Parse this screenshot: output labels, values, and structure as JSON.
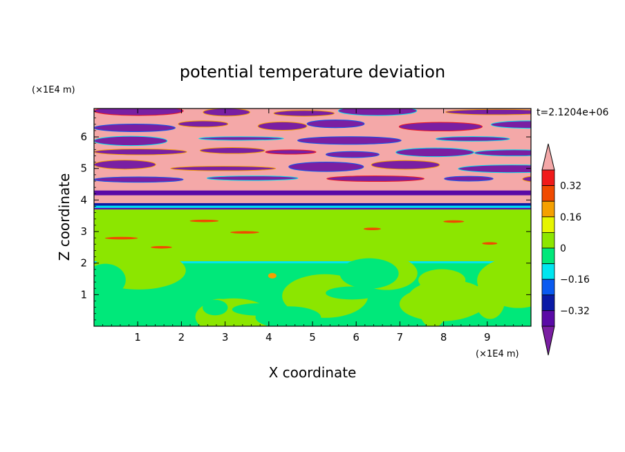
{
  "chart_data": {
    "type": "heatmap",
    "title": "potential temperature deviation",
    "xlabel": "X coordinate",
    "ylabel": "Z coordinate",
    "x_unit": "(×1E4 m)",
    "y_unit": "(×1E4 m)",
    "time_label": "t=2.1204e+06",
    "xlim": [
      0,
      10
    ],
    "ylim": [
      0,
      6.9
    ],
    "x_ticks": [
      1,
      2,
      3,
      4,
      5,
      6,
      7,
      8,
      9
    ],
    "y_ticks": [
      1,
      2,
      3,
      4,
      5,
      6
    ],
    "colorbar": {
      "levels": [
        -0.4,
        -0.32,
        -0.24,
        -0.16,
        -0.08,
        0,
        0.08,
        0.16,
        0.24,
        0.32,
        0.4
      ],
      "tick_labels": [
        "0.32",
        "0.16",
        "0",
        "−0.16",
        "−0.32"
      ],
      "tick_values": [
        0.32,
        0.16,
        0,
        -0.16,
        -0.32
      ],
      "under_color": "#7a1fa2",
      "over_color": "#f4a8a8",
      "colors": [
        "#5a0aa6",
        "#0a1aa6",
        "#0a5af0",
        "#00e6f0",
        "#00e87a",
        "#8ce600",
        "#e6f500",
        "#f5a000",
        "#f04a00",
        "#f01a1a"
      ]
    },
    "regions": [
      {
        "z": [
          0.0,
          2.0
        ],
        "description_value": "mixed",
        "dominant_value": -0.04,
        "secondary_value": 0.04
      },
      {
        "z": [
          2.0,
          3.7
        ],
        "dominant_value": 0.04,
        "secondary_value": -0.04
      },
      {
        "z": [
          3.7,
          4.3
        ],
        "dominant_value": -0.36,
        "secondary_value": 0.36
      },
      {
        "z": [
          4.3,
          6.9
        ],
        "dominant_value": 0.45,
        "secondary_value": -0.45
      }
    ]
  }
}
